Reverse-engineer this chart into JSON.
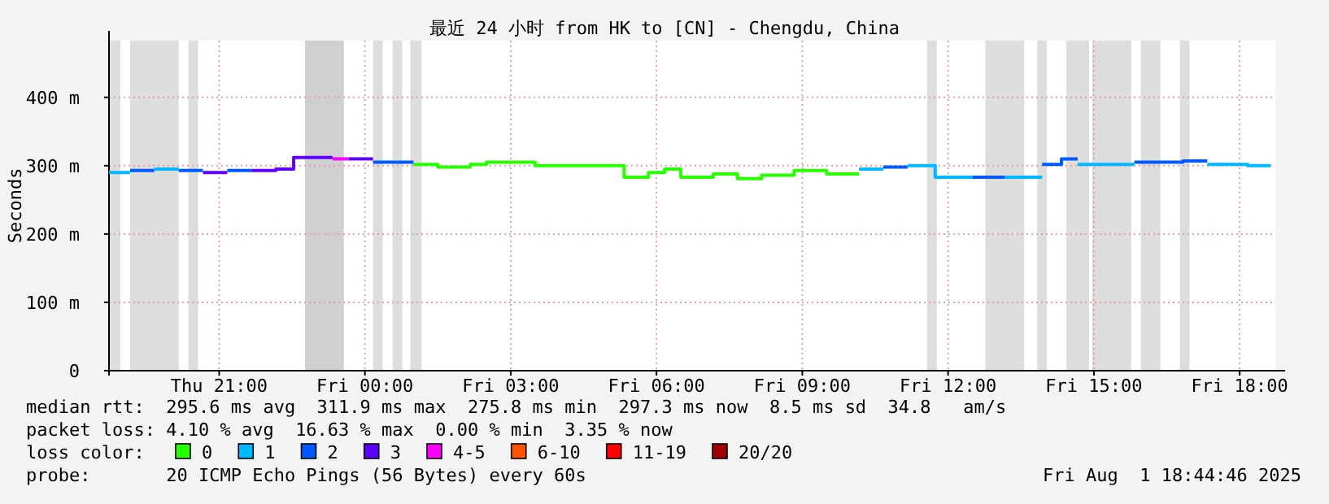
{
  "chart_data": {
    "type": "step",
    "title": "最近 24 小时 from HK to [CN] - Chengdu, China",
    "ylabel": "Seconds",
    "legend_title": "loss color:",
    "legend": "bottom",
    "grid": true,
    "xlim": [
      "2025-07-31T18:44",
      "2025-08-01T18:44"
    ],
    "ylim": [
      0,
      483
    ],
    "xticks": [
      {
        "value": "2025-07-31T21:00",
        "label": "Thu 21:00"
      },
      {
        "value": "2025-08-01T00:00",
        "label": "Fri 00:00"
      },
      {
        "value": "2025-08-01T03:00",
        "label": "Fri 03:00"
      },
      {
        "value": "2025-08-01T06:00",
        "label": "Fri 06:00"
      },
      {
        "value": "2025-08-01T09:00",
        "label": "Fri 09:00"
      },
      {
        "value": "2025-08-01T12:00",
        "label": "Fri 12:00"
      },
      {
        "value": "2025-08-01T15:00",
        "label": "Fri 15:00"
      },
      {
        "value": "2025-08-01T18:00",
        "label": "Fri 18:00"
      }
    ],
    "yticks": [
      0,
      {
        "value": 100,
        "label": "100 m"
      },
      {
        "value": 200,
        "label": "200 m"
      },
      {
        "value": 300,
        "label": "300 m"
      },
      {
        "value": 400,
        "label": "400 m"
      }
    ],
    "series": [
      {
        "name": "0",
        "color": "#26ff00",
        "x": [
          "2025-08-01T01:00",
          "2025-08-01T01:30",
          "2025-08-01T02:10",
          "2025-08-01T02:30",
          "2025-08-01T03:30",
          "2025-08-01T05:20",
          "2025-08-01T05:50",
          "2025-08-01T06:10",
          "2025-08-01T06:30",
          "2025-08-01T07:10",
          "2025-08-01T07:40",
          "2025-08-01T08:10",
          "2025-08-01T08:50",
          "2025-08-01T09:30",
          "2025-08-01T10:10"
        ],
        "values": [
          302,
          298,
          302,
          305,
          300,
          283,
          290,
          295,
          283,
          288,
          281,
          286,
          293,
          288,
          288
        ]
      },
      {
        "name": "1",
        "color": "#00b8ff",
        "x": [
          "2025-07-31T18:44",
          "2025-07-31T19:10"
        ],
        "values": [
          290,
          290
        ]
      },
      {
        "name": "2",
        "color": "#0059ff",
        "x": [
          "2025-07-31T19:10",
          "2025-07-31T19:40"
        ],
        "values": [
          293,
          293
        ]
      },
      {
        "name": "3",
        "color": "#5e00ff",
        "x": [
          "2025-07-31T20:40",
          "2025-07-31T21:10"
        ],
        "values": [
          290,
          290
        ]
      },
      {
        "name": "4-5",
        "color": "#ff00ff",
        "x": [
          "2025-07-31T23:20",
          "2025-07-31T23:40"
        ],
        "values": [
          310,
          310
        ]
      },
      {
        "name": "6-10",
        "color": "#ff5500"
      },
      {
        "name": "11-19",
        "color": "#ff0000"
      },
      {
        "name": "20/20",
        "color": "#a10000"
      },
      {
        "color": "#00b8ff",
        "x": [
          "2025-07-31T19:40",
          "2025-07-31T20:10"
        ],
        "values": [
          295,
          295
        ]
      },
      {
        "color": "#00b8ff",
        "x": [
          "2025-08-01T10:10",
          "2025-08-01T10:40"
        ],
        "values": [
          295,
          295
        ]
      },
      {
        "color": "#00b8ff",
        "x": [
          "2025-08-01T11:10",
          "2025-08-01T11:44",
          "2025-08-01T12:30"
        ],
        "values": [
          300,
          283,
          283
        ]
      },
      {
        "color": "#00b8ff",
        "x": [
          "2025-08-01T13:10",
          "2025-08-01T13:56"
        ],
        "values": [
          283,
          283
        ]
      },
      {
        "color": "#00b8ff",
        "x": [
          "2025-08-01T14:40",
          "2025-08-01T15:50"
        ],
        "values": [
          302,
          302
        ]
      },
      {
        "color": "#00b8ff",
        "x": [
          "2025-08-01T17:20",
          "2025-08-01T18:10",
          "2025-08-01T18:38"
        ],
        "values": [
          302,
          300,
          300
        ]
      },
      {
        "color": "#0059ff",
        "x": [
          "2025-07-31T20:10",
          "2025-07-31T20:40"
        ],
        "values": [
          293,
          293
        ]
      },
      {
        "color": "#0059ff",
        "x": [
          "2025-07-31T21:10",
          "2025-07-31T21:40"
        ],
        "values": [
          293,
          293
        ]
      },
      {
        "color": "#0059ff",
        "x": [
          "2025-08-01T00:10",
          "2025-08-01T01:00"
        ],
        "values": [
          305,
          305
        ]
      },
      {
        "color": "#0059ff",
        "x": [
          "2025-08-01T10:40",
          "2025-08-01T11:10"
        ],
        "values": [
          298,
          298
        ]
      },
      {
        "color": "#0059ff",
        "x": [
          "2025-08-01T12:30",
          "2025-08-01T13:10"
        ],
        "values": [
          283,
          283
        ]
      },
      {
        "color": "#0059ff",
        "x": [
          "2025-08-01T13:56",
          "2025-08-01T14:20",
          "2025-08-01T14:40"
        ],
        "values": [
          302,
          310,
          310
        ]
      },
      {
        "color": "#0059ff",
        "x": [
          "2025-08-01T15:50",
          "2025-08-01T16:50",
          "2025-08-01T17:20"
        ],
        "values": [
          305,
          307,
          307
        ]
      },
      {
        "color": "#5e00ff",
        "x": [
          "2025-07-31T21:40",
          "2025-07-31T22:10",
          "2025-07-31T22:32",
          "2025-07-31T23:20"
        ],
        "values": [
          293,
          295,
          312,
          312
        ]
      },
      {
        "color": "#5e00ff",
        "x": [
          "2025-07-31T23:40",
          "2025-08-01T00:10"
        ],
        "values": [
          310,
          310
        ]
      }
    ],
    "bands": [
      {
        "axis": "x",
        "from": "2025-07-31T18:44",
        "to": "2025-07-31T18:58",
        "color": "#dddddd"
      },
      {
        "axis": "x",
        "from": "2025-07-31T19:10",
        "to": "2025-07-31T20:10",
        "color": "#dddddd"
      },
      {
        "axis": "x",
        "from": "2025-07-31T20:22",
        "to": "2025-07-31T20:34",
        "color": "#dddddd"
      },
      {
        "axis": "x",
        "from": "2025-07-31T22:46",
        "to": "2025-07-31T23:34",
        "color": "#d0d0d0"
      },
      {
        "axis": "x",
        "from": "2025-08-01T00:10",
        "to": "2025-08-01T00:22",
        "color": "#dddddd"
      },
      {
        "axis": "x",
        "from": "2025-08-01T00:34",
        "to": "2025-08-01T00:46",
        "color": "#dddddd"
      },
      {
        "axis": "x",
        "from": "2025-08-01T00:56",
        "to": "2025-08-01T01:10",
        "color": "#dddddd"
      },
      {
        "axis": "x",
        "from": "2025-08-01T11:34",
        "to": "2025-08-01T11:46",
        "color": "#dddddd"
      },
      {
        "axis": "x",
        "from": "2025-08-01T12:46",
        "to": "2025-08-01T13:34",
        "color": "#dddddd"
      },
      {
        "axis": "x",
        "from": "2025-08-01T13:50",
        "to": "2025-08-01T14:02",
        "color": "#dddddd"
      },
      {
        "axis": "x",
        "from": "2025-08-01T14:26",
        "to": "2025-08-01T14:54",
        "color": "#dddddd"
      },
      {
        "axis": "x",
        "from": "2025-08-01T14:58",
        "to": "2025-08-01T15:46",
        "color": "#dddddd"
      },
      {
        "axis": "x",
        "from": "2025-08-01T15:58",
        "to": "2025-08-01T16:22",
        "color": "#dddddd"
      },
      {
        "axis": "x",
        "from": "2025-08-01T16:46",
        "to": "2025-08-01T16:58",
        "color": "#dddddd"
      }
    ],
    "annotations": [
      "median rtt:  295.6 ms avg  311.9 ms max  275.8 ms min  297.3 ms now  8.5 ms sd  34.8   am/s",
      "packet loss: 4.10 % avg  16.63 % max  0.00 % min  3.35 % now",
      "probe:       20 ICMP Echo Pings (56 Bytes) every 60s",
      "Fri Aug  1 18:44:46 2025"
    ]
  }
}
